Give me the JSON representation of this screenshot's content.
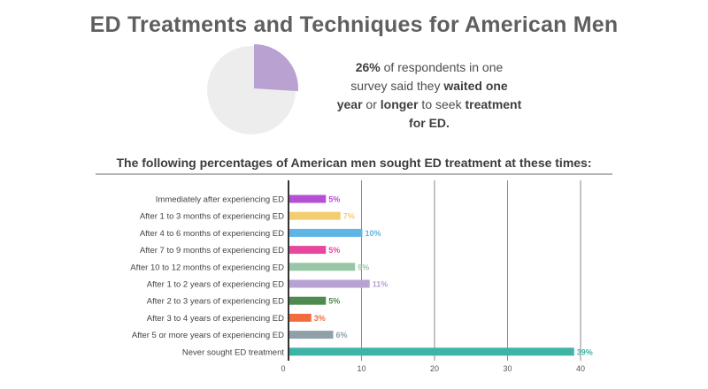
{
  "header": {
    "title": "ED Treatments and Techniques for American Men"
  },
  "stat": {
    "percent": "26%",
    "t1": " of respondents in one survey said they ",
    "waited": "waited",
    "t2": " ",
    "one_year": "one year",
    "t3": " or ",
    "longer": "longer",
    "t4": " to seek ",
    "treatment": "treatment for ED."
  },
  "pie_data": {
    "value": 26,
    "color": "#b9a1d2",
    "rest_color": "#ededed"
  },
  "subtitle": "The following percentages of American men sought ED treatment at these times:",
  "chart_data": {
    "type": "bar",
    "orientation": "horizontal",
    "categories": [
      "Immediately after experiencing ED",
      "After 1 to 3 months of experiencing ED",
      "After 4 to 6 months of experiencing ED",
      "After 7 to 9 months of experiencing ED",
      "After 10 to 12 months of experiencing ED",
      "After 1 to 2 years of experiencing ED",
      "After 2 to 3 years of experiencing ED",
      "After 3 to 4 years of experiencing ED",
      "After 5 or more years of experiencing ED",
      "Never sought ED treatment"
    ],
    "values": [
      5,
      7,
      10,
      5,
      9,
      11,
      5,
      3,
      6,
      39
    ],
    "labels": [
      "5%",
      "7%",
      "10%",
      "5%",
      "9%",
      "11%",
      "5%",
      "3%",
      "6%",
      "39%"
    ],
    "colors": [
      "#b54fd6",
      "#f2cd72",
      "#5fb5e3",
      "#e8479e",
      "#97c7a6",
      "#b7a2d3",
      "#4f8a4f",
      "#f26c3d",
      "#8fa0a9",
      "#3fb3a6"
    ],
    "x_ticks": [
      "0",
      "10",
      "20",
      "30",
      "40"
    ],
    "xlim": [
      0,
      40
    ],
    "grid": true
  }
}
